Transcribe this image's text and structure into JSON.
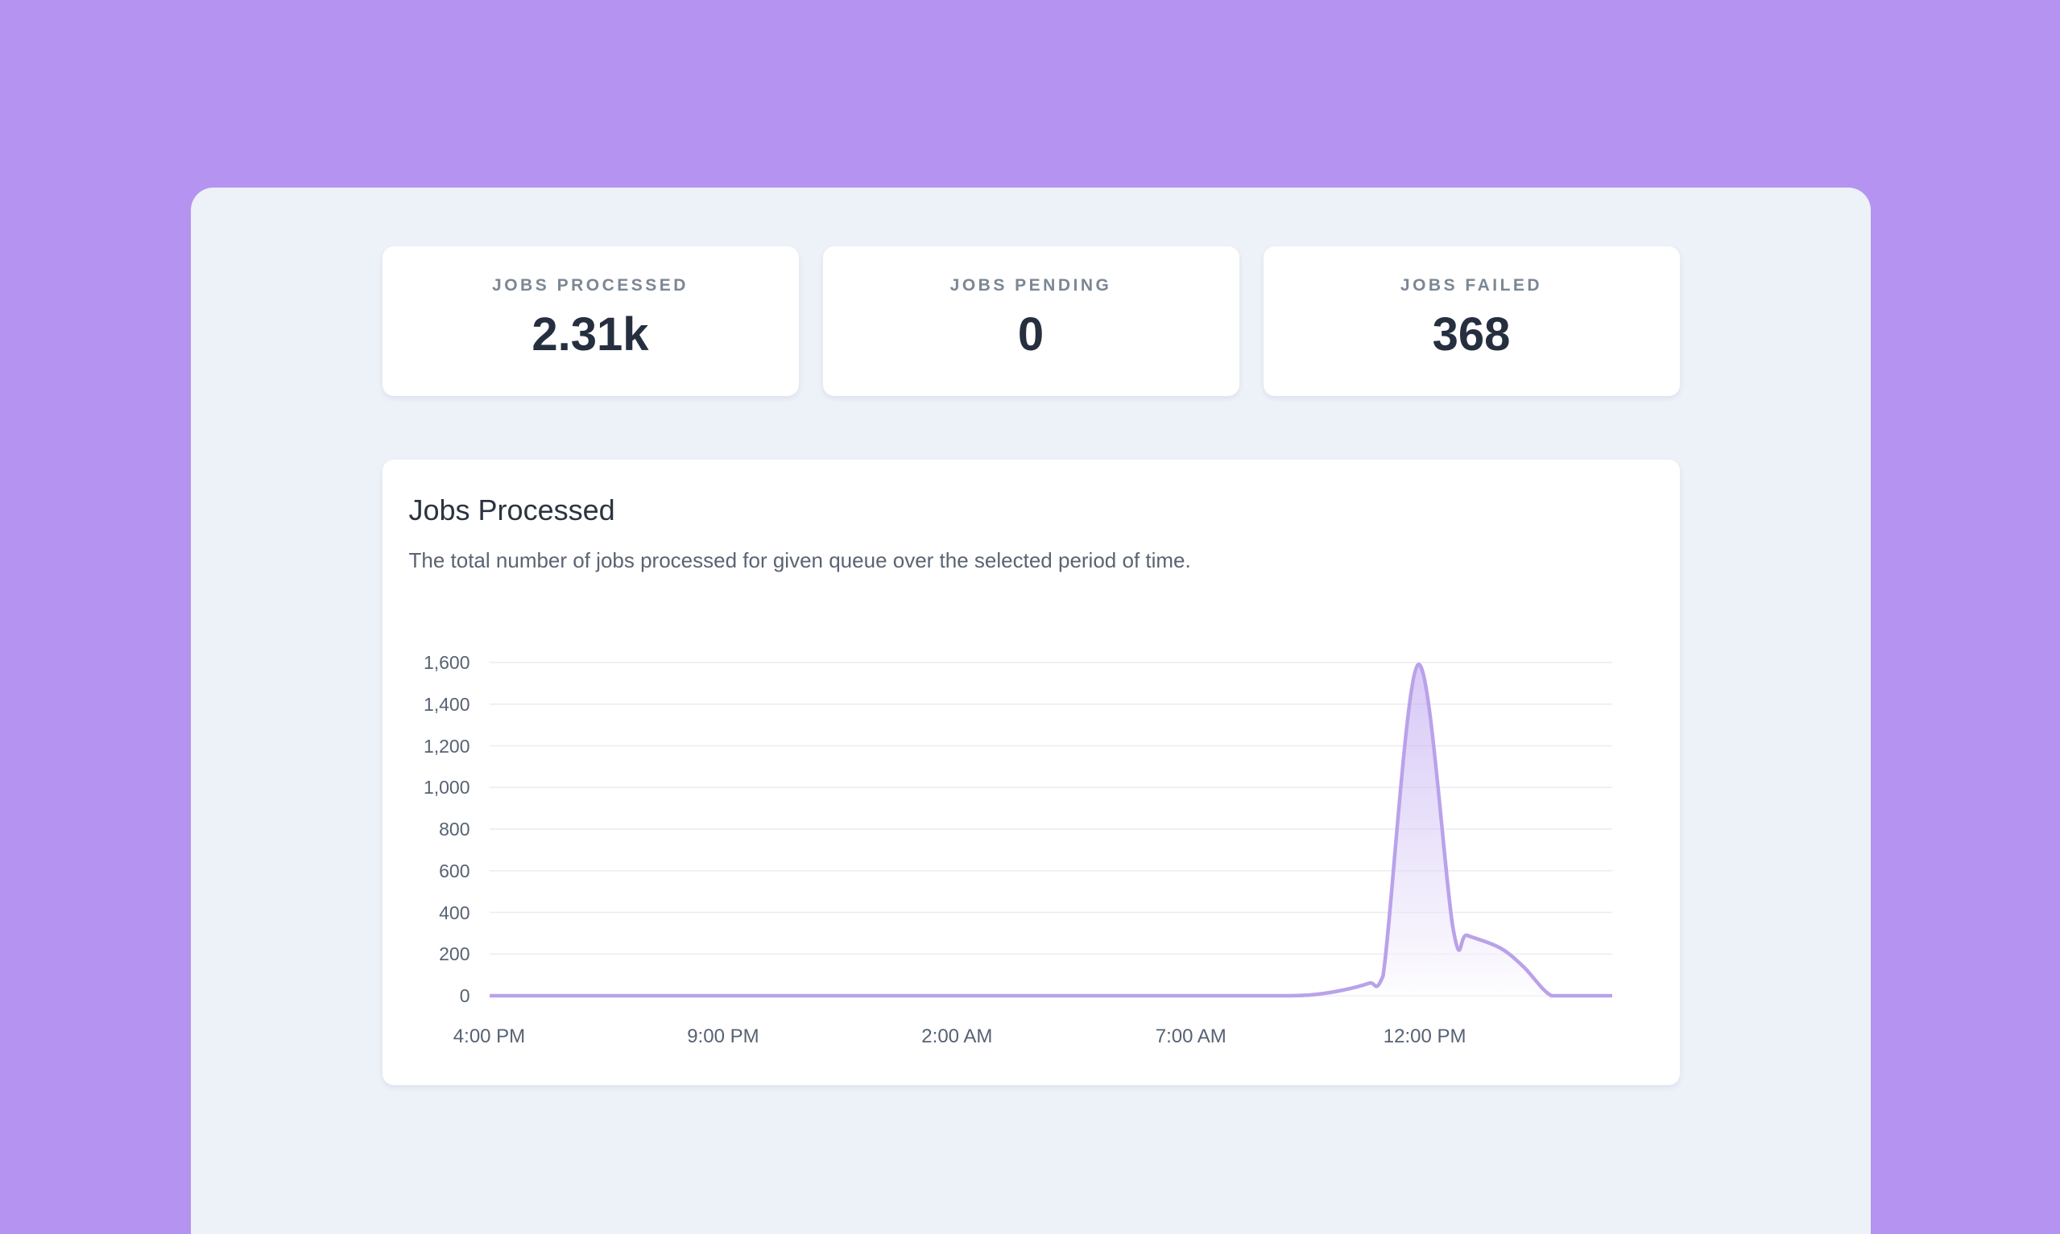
{
  "page": {
    "background_color": "#B493F1",
    "panel_color": "#EDF1F8",
    "card_color": "#FFFFFF"
  },
  "stats": [
    {
      "label": "JOBS PROCESSED",
      "value": "2.31k"
    },
    {
      "label": "JOBS PENDING",
      "value": "0"
    },
    {
      "label": "JOBS FAILED",
      "value": "368"
    }
  ],
  "chart_card": {
    "title": "Jobs Processed",
    "description": "The total number of jobs processed for given queue over the selected period of time."
  },
  "chart_data": {
    "type": "area",
    "title": "Jobs Processed",
    "series_name": "Jobs Processed",
    "grid": true,
    "legend": false,
    "x_axis": {
      "unit": "hours",
      "range": [
        0,
        24
      ],
      "ticks": [
        {
          "pos": 0,
          "label": "4:00 PM"
        },
        {
          "pos": 5,
          "label": "9:00 PM"
        },
        {
          "pos": 10,
          "label": "2:00 AM"
        },
        {
          "pos": 15,
          "label": "7:00 AM"
        },
        {
          "pos": 20,
          "label": "12:00 PM"
        }
      ]
    },
    "y_axis": {
      "range": [
        0,
        1600
      ],
      "tick_step": 200,
      "tick_labels": [
        "0",
        "200",
        "400",
        "600",
        "800",
        "1,000",
        "1,200",
        "1,400",
        "1,600"
      ]
    },
    "colors": {
      "line": "#B9A2EA",
      "fill_top": "rgba(177,148,238,0.50)",
      "fill_bottom": "rgba(252,251,254,0.55)",
      "gridline": "#ECEBF2"
    },
    "points": [
      {
        "hours": 0,
        "time": "4:00 PM",
        "value": 0
      },
      {
        "hours": 1,
        "time": "5:00 PM",
        "value": 0
      },
      {
        "hours": 2,
        "time": "6:00 PM",
        "value": 0
      },
      {
        "hours": 3,
        "time": "7:00 PM",
        "value": 0
      },
      {
        "hours": 4,
        "time": "8:00 PM",
        "value": 0
      },
      {
        "hours": 5,
        "time": "9:00 PM",
        "value": 0
      },
      {
        "hours": 6,
        "time": "10:00 PM",
        "value": 0
      },
      {
        "hours": 7,
        "time": "11:00 PM",
        "value": 0
      },
      {
        "hours": 8,
        "time": "12:00 AM",
        "value": 0
      },
      {
        "hours": 9,
        "time": "1:00 AM",
        "value": 0
      },
      {
        "hours": 10,
        "time": "2:00 AM",
        "value": 0
      },
      {
        "hours": 11,
        "time": "3:00 AM",
        "value": 0
      },
      {
        "hours": 12,
        "time": "4:00 AM",
        "value": 0
      },
      {
        "hours": 13,
        "time": "5:00 AM",
        "value": 0
      },
      {
        "hours": 14,
        "time": "6:00 AM",
        "value": 0
      },
      {
        "hours": 15,
        "time": "7:00 AM",
        "value": 0
      },
      {
        "hours": 16,
        "time": "8:00 AM",
        "value": 0
      },
      {
        "hours": 17,
        "time": "9:00 AM",
        "value": 0
      },
      {
        "hours": 17.6,
        "time": "9:35 AM",
        "value": 5
      },
      {
        "hours": 18.2,
        "time": "10:10 AM",
        "value": 25
      },
      {
        "hours": 18.8,
        "time": "10:50 AM",
        "value": 60
      },
      {
        "hours": 19.1,
        "time": "11:05 AM",
        "value": 95
      },
      {
        "hours": 19.85,
        "time": "11:50 AM",
        "value": 1590
      },
      {
        "hours": 20.6,
        "time": "12:35 PM",
        "value": 320
      },
      {
        "hours": 20.9,
        "time": "12:55 PM",
        "value": 290
      },
      {
        "hours": 21.6,
        "time": "1:35 PM",
        "value": 230
      },
      {
        "hours": 22.1,
        "time": "2:05 PM",
        "value": 140
      },
      {
        "hours": 22.7,
        "time": "2:40 PM",
        "value": 0
      },
      {
        "hours": 23.3,
        "time": "3:20 PM",
        "value": 0
      },
      {
        "hours": 24,
        "time": "4:00 PM",
        "value": 0
      }
    ]
  }
}
